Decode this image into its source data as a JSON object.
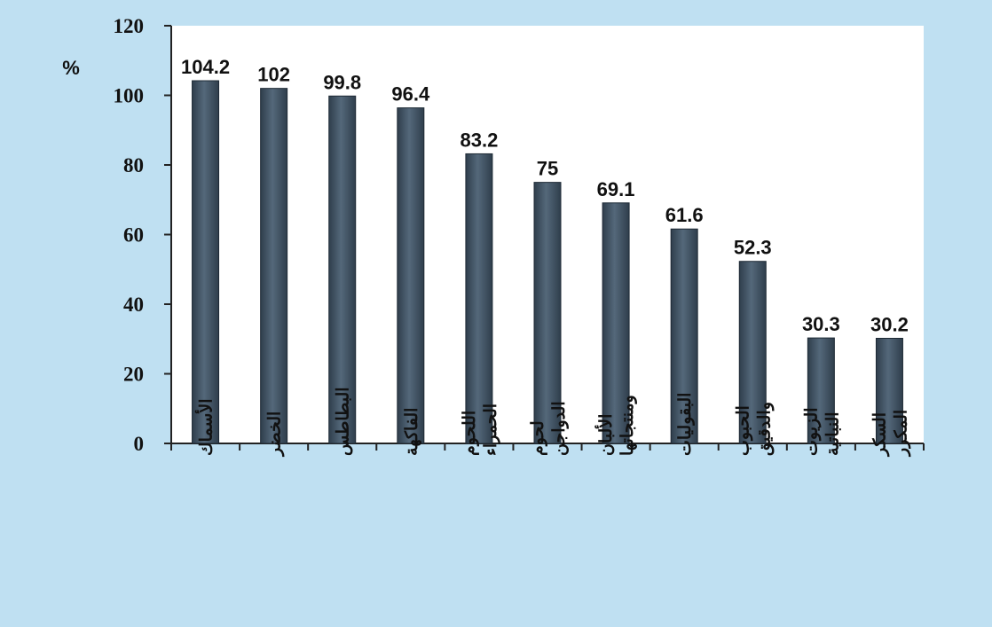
{
  "chart_data": {
    "type": "bar",
    "ylabel": "%",
    "ylim": [
      0,
      120
    ],
    "yticks": [
      0,
      20,
      40,
      60,
      80,
      100,
      120
    ],
    "categories": [
      [
        "الأسماك"
      ],
      [
        "الخضر"
      ],
      [
        "البطاطس"
      ],
      [
        "الفاكهة"
      ],
      [
        "اللحوم",
        "الحمراء"
      ],
      [
        "لحوم",
        "الدواجن"
      ],
      [
        "الألبان",
        "ومنتجاتها"
      ],
      [
        "البقوليات"
      ],
      [
        "الحبوب",
        "والدقيق"
      ],
      [
        "الزيوت",
        "النباتية"
      ],
      [
        "السكر",
        "المكرر"
      ]
    ],
    "values": [
      104.2,
      102,
      99.8,
      96.4,
      83.2,
      75,
      69.1,
      61.6,
      52.3,
      30.3,
      30.2
    ],
    "value_labels": [
      "104.2",
      "102",
      "99.8",
      "96.4",
      "83.2",
      "75",
      "69.1",
      "61.6",
      "52.3",
      "30.3",
      "30.2"
    ],
    "grid": false,
    "colors": {
      "background": "#bfe0f2",
      "plot_area": "#ffffff",
      "bar": "#2f3e4c",
      "bar_highlight": "#54687a",
      "axis": "#222222"
    }
  }
}
